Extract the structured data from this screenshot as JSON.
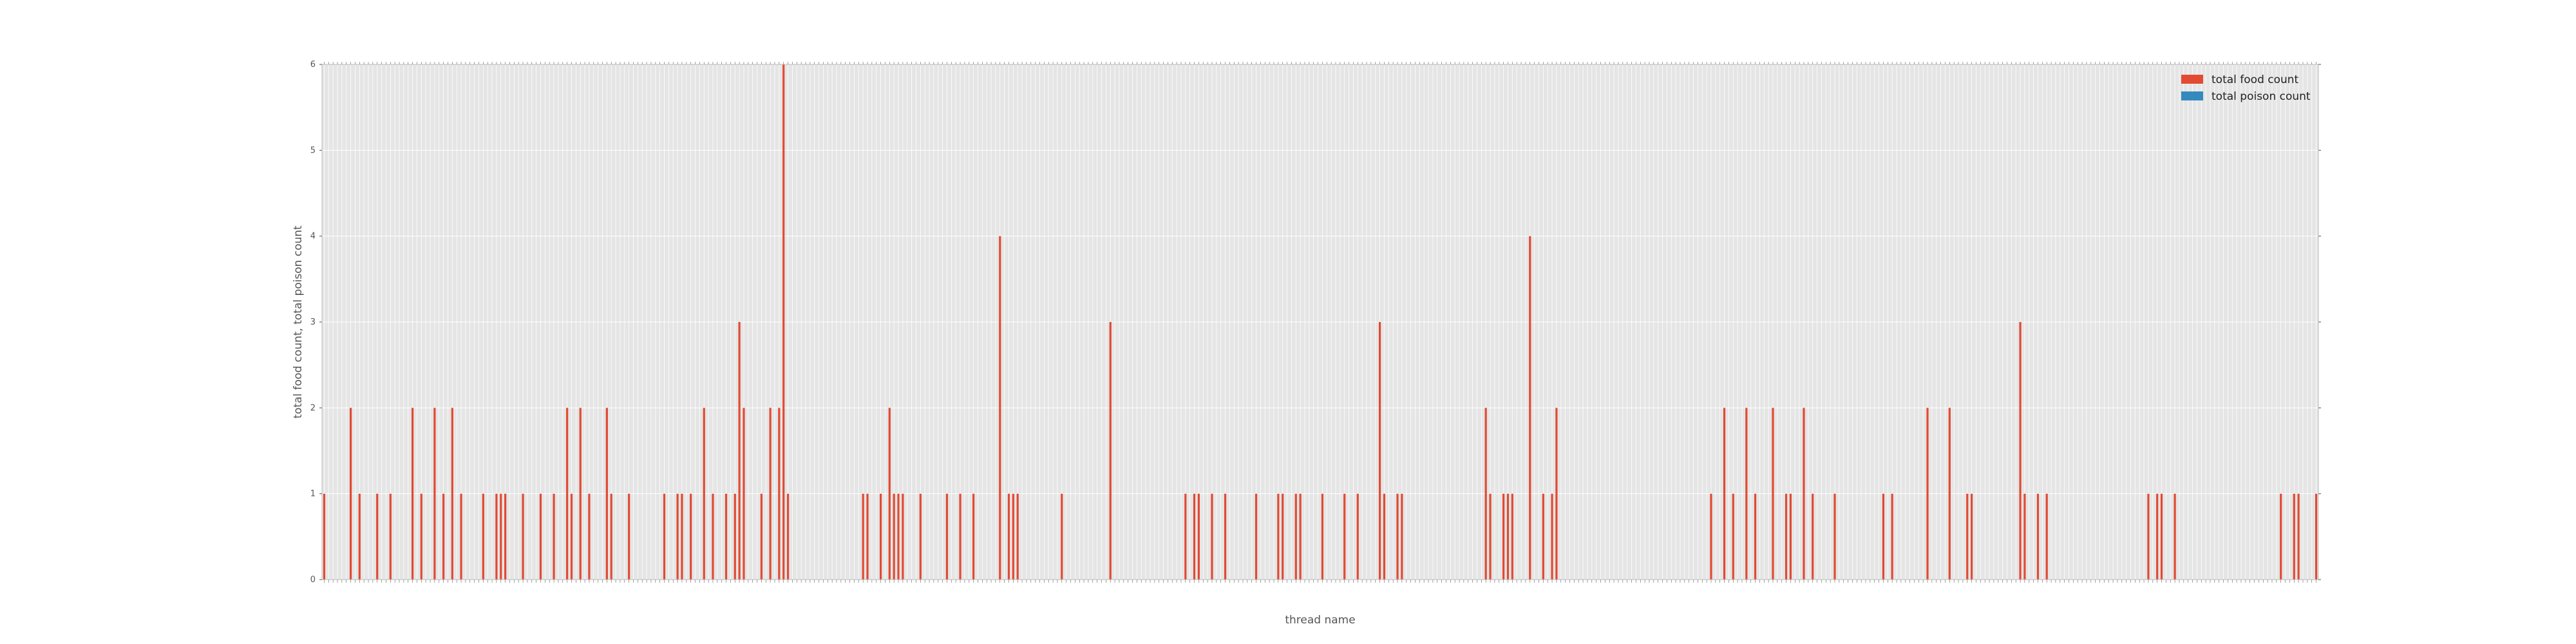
{
  "chart_data": {
    "type": "bar",
    "title": "",
    "xlabel": "thread name",
    "ylabel": "total food count, total poison count",
    "ylim": [
      0,
      6
    ],
    "yticks": [
      "0",
      "1",
      "2",
      "3",
      "4",
      "5",
      "6"
    ],
    "grid": true,
    "legend_position": "top-right",
    "x_tick_labels_note": "",
    "series": [
      {
        "name": "total food count",
        "color": "#e24a33",
        "values": [
          1,
          0,
          0,
          0,
          0,
          0,
          2,
          0,
          1,
          0,
          0,
          0,
          1,
          0,
          0,
          1,
          0,
          0,
          0,
          0,
          2,
          0,
          1,
          0,
          0,
          2,
          0,
          1,
          0,
          2,
          0,
          1,
          0,
          0,
          0,
          0,
          1,
          0,
          0,
          1,
          1,
          1,
          0,
          0,
          0,
          1,
          0,
          0,
          0,
          1,
          0,
          0,
          1,
          0,
          0,
          2,
          1,
          0,
          2,
          0,
          1,
          0,
          0,
          0,
          2,
          1,
          0,
          0,
          0,
          1,
          0,
          0,
          0,
          0,
          0,
          0,
          0,
          1,
          0,
          0,
          1,
          1,
          0,
          1,
          0,
          0,
          2,
          0,
          1,
          0,
          0,
          1,
          0,
          1,
          3,
          2,
          0,
          0,
          0,
          1,
          0,
          2,
          0,
          2,
          6,
          1,
          0,
          0,
          0,
          0,
          0,
          0,
          0,
          0,
          0,
          0,
          0,
          0,
          0,
          0,
          0,
          0,
          1,
          1,
          0,
          0,
          1,
          0,
          2,
          1,
          1,
          1,
          0,
          0,
          0,
          1,
          0,
          0,
          0,
          0,
          0,
          1,
          0,
          0,
          1,
          0,
          0,
          1,
          0,
          0,
          0,
          0,
          0,
          4,
          0,
          1,
          1,
          1,
          0,
          0,
          0,
          0,
          0,
          0,
          0,
          0,
          0,
          1,
          0,
          0,
          0,
          0,
          0,
          0,
          0,
          0,
          0,
          0,
          3,
          0,
          0,
          0,
          0,
          0,
          0,
          0,
          0,
          0,
          0,
          0,
          0,
          0,
          0,
          0,
          0,
          1,
          0,
          1,
          1,
          0,
          0,
          1,
          0,
          0,
          1,
          0,
          0,
          0,
          0,
          0,
          0,
          1,
          0,
          0,
          0,
          0,
          1,
          1,
          0,
          0,
          1,
          1,
          0,
          0,
          0,
          0,
          1,
          0,
          0,
          0,
          0,
          1,
          0,
          0,
          1,
          0,
          0,
          0,
          0,
          3,
          1,
          0,
          0,
          1,
          1,
          0,
          0,
          0,
          0,
          0,
          0,
          0,
          0,
          0,
          0,
          0,
          0,
          0,
          0,
          0,
          0,
          0,
          0,
          2,
          1,
          0,
          0,
          1,
          1,
          1,
          0,
          0,
          0,
          4,
          0,
          0,
          1,
          0,
          1,
          2,
          0,
          0,
          0,
          0,
          0,
          0,
          0,
          0,
          0,
          0,
          0,
          0,
          0,
          0,
          0,
          0,
          0,
          0,
          0,
          0,
          0,
          0,
          0,
          0,
          0,
          0,
          0,
          0,
          0,
          0,
          0,
          0,
          0,
          0,
          1,
          0,
          0,
          2,
          0,
          1,
          0,
          0,
          2,
          0,
          1,
          0,
          0,
          0,
          2,
          0,
          0,
          1,
          1,
          0,
          0,
          2,
          0,
          1,
          0,
          0,
          0,
          0,
          1,
          0,
          0,
          0,
          0,
          0,
          0,
          0,
          0,
          0,
          0,
          1,
          0,
          1,
          0,
          0,
          0,
          0,
          0,
          0,
          0,
          2,
          0,
          0,
          0,
          0,
          2,
          0,
          0,
          0,
          1,
          1,
          0,
          0,
          0,
          0,
          0,
          0,
          0,
          0,
          0,
          0,
          3,
          1,
          0,
          0,
          1,
          0,
          1,
          0,
          0,
          0,
          0,
          0,
          0,
          0,
          0,
          0,
          0,
          0,
          0,
          0,
          0,
          0,
          0,
          0,
          0,
          0,
          0,
          0,
          0,
          1,
          0,
          1,
          1,
          0,
          0,
          1,
          0,
          0,
          0,
          0,
          0,
          0,
          0,
          0,
          0,
          0,
          0,
          0,
          0,
          0,
          0,
          0,
          0,
          0,
          0,
          0,
          0,
          0,
          0,
          1,
          0,
          0,
          1,
          1,
          0,
          0,
          0,
          1
        ]
      },
      {
        "name": "total poison count",
        "color": "#348abd",
        "values": []
      }
    ]
  }
}
